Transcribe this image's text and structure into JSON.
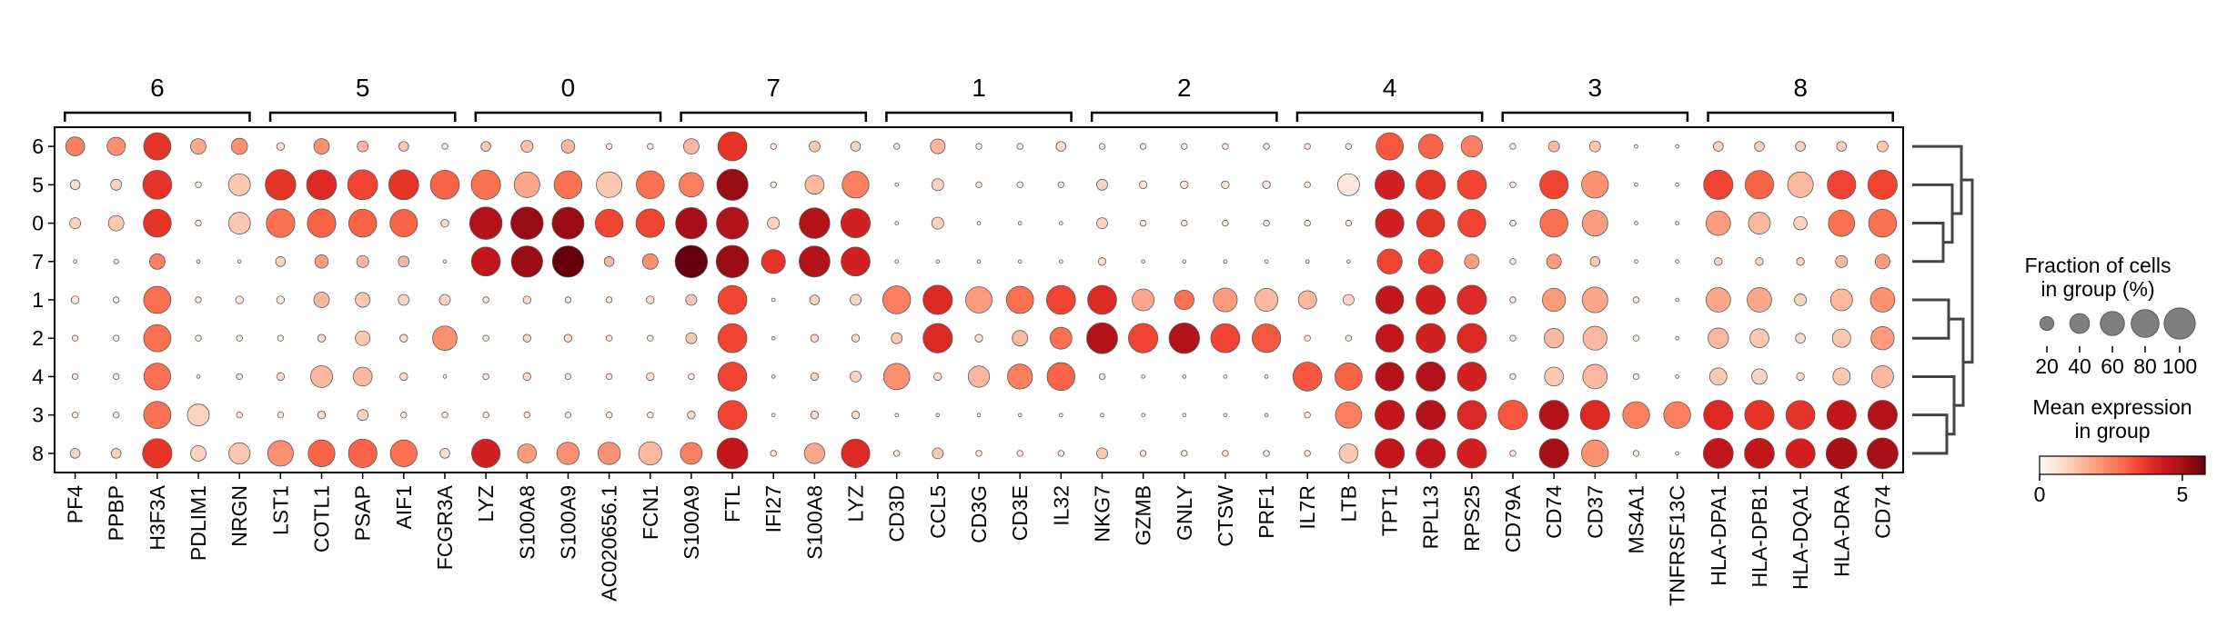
{
  "chart_data": {
    "type": "dotplot",
    "rows": [
      "6",
      "5",
      "0",
      "7",
      "1",
      "2",
      "4",
      "3",
      "8"
    ],
    "gene_groups": [
      {
        "label": "6",
        "genes": [
          "PF4",
          "PPBP",
          "H3F3A",
          "PDLIM1",
          "NRGN"
        ]
      },
      {
        "label": "5",
        "genes": [
          "LST1",
          "COTL1",
          "PSAP",
          "AIF1",
          "FCGR3A"
        ]
      },
      {
        "label": "0",
        "genes": [
          "LYZ",
          "S100A8",
          "S100A9",
          "AC020656.1",
          "FCN1"
        ]
      },
      {
        "label": "7",
        "genes": [
          "S100A9",
          "FTL",
          "IFI27",
          "S100A8",
          "LYZ"
        ]
      },
      {
        "label": "1",
        "genes": [
          "CD3D",
          "CCL5",
          "CD3G",
          "CD3E",
          "IL32"
        ]
      },
      {
        "label": "2",
        "genes": [
          "NKG7",
          "GZMB",
          "GNLY",
          "CTSW",
          "PRF1"
        ]
      },
      {
        "label": "4",
        "genes": [
          "IL7R",
          "LTB",
          "TPT1",
          "RPL13",
          "RPS25"
        ]
      },
      {
        "label": "3",
        "genes": [
          "CD79A",
          "CD74",
          "CD37",
          "MS4A1",
          "TNFRSF13C"
        ]
      },
      {
        "label": "8",
        "genes": [
          "HLA-DPA1",
          "HLA-DPB1",
          "HLA-DQA1",
          "HLA-DRA",
          "CD74"
        ]
      }
    ],
    "fraction": [
      [
        30,
        28,
        62,
        20,
        22,
        5,
        20,
        10,
        8,
        3,
        8,
        12,
        15,
        3,
        3,
        20,
        70,
        3,
        10,
        8,
        3,
        18,
        3,
        3,
        8,
        3,
        3,
        3,
        3,
        3,
        3,
        3,
        62,
        50,
        38,
        3,
        10,
        10,
        1,
        1,
        8,
        8,
        8,
        8,
        10
      ],
      [
        8,
        10,
        70,
        3,
        40,
        78,
        75,
        75,
        75,
        70,
        72,
        55,
        65,
        55,
        65,
        50,
        82,
        3,
        30,
        60,
        1,
        12,
        3,
        3,
        3,
        10,
        5,
        5,
        5,
        5,
        3,
        40,
        72,
        72,
        70,
        3,
        68,
        60,
        1,
        1,
        72,
        68,
        55,
        68,
        72
      ],
      [
        10,
        20,
        65,
        3,
        40,
        68,
        68,
        65,
        63,
        5,
        88,
        88,
        85,
        65,
        68,
        82,
        85,
        12,
        78,
        72,
        1,
        12,
        1,
        1,
        1,
        10,
        3,
        3,
        3,
        3,
        3,
        3,
        68,
        65,
        65,
        3,
        65,
        55,
        1,
        1,
        50,
        40,
        15,
        58,
        65
      ],
      [
        1,
        2,
        20,
        1,
        1,
        8,
        15,
        12,
        10,
        1,
        70,
        82,
        82,
        8,
        20,
        88,
        88,
        48,
        80,
        70,
        1,
        1,
        1,
        1,
        1,
        5,
        1,
        1,
        1,
        1,
        1,
        1,
        52,
        50,
        18,
        3,
        18,
        8,
        1,
        1,
        5,
        5,
        5,
        12,
        18
      ],
      [
        5,
        3,
        62,
        3,
        5,
        5,
        20,
        18,
        10,
        10,
        3,
        5,
        3,
        3,
        5,
        10,
        70,
        1,
        8,
        10,
        65,
        72,
        58,
        62,
        70,
        70,
        40,
        32,
        48,
        44,
        28,
        10,
        65,
        72,
        72,
        3,
        45,
        55,
        3,
        1,
        50,
        50,
        12,
        40,
        50
      ],
      [
        3,
        3,
        62,
        3,
        3,
        3,
        5,
        18,
        5,
        50,
        3,
        5,
        5,
        3,
        3,
        10,
        70,
        1,
        5,
        5,
        10,
        72,
        5,
        20,
        40,
        80,
        72,
        78,
        70,
        68,
        3,
        3,
        65,
        72,
        72,
        3,
        32,
        48,
        3,
        1,
        35,
        30,
        8,
        28,
        45
      ],
      [
        3,
        3,
        60,
        1,
        3,
        5,
        40,
        30,
        5,
        1,
        3,
        5,
        3,
        3,
        5,
        3,
        70,
        1,
        5,
        10,
        58,
        5,
        38,
        52,
        65,
        3,
        1,
        1,
        1,
        1,
        70,
        62,
        68,
        72,
        70,
        3,
        30,
        50,
        3,
        1,
        25,
        20,
        5,
        25,
        40
      ],
      [
        3,
        3,
        62,
        40,
        3,
        3,
        5,
        10,
        3,
        3,
        3,
        3,
        3,
        3,
        3,
        5,
        70,
        1,
        5,
        5,
        1,
        1,
        1,
        1,
        1,
        1,
        1,
        1,
        1,
        1,
        3,
        58,
        72,
        72,
        70,
        72,
        72,
        72,
        60,
        60,
        72,
        72,
        70,
        72,
        72
      ],
      [
        8,
        8,
        72,
        20,
        38,
        55,
        60,
        68,
        60,
        8,
        68,
        30,
        42,
        42,
        45,
        40,
        80,
        3,
        35,
        68,
        3,
        10,
        3,
        3,
        3,
        10,
        3,
        3,
        3,
        3,
        3,
        30,
        72,
        72,
        72,
        3,
        72,
        60,
        3,
        1,
        75,
        75,
        72,
        80,
        80
      ]
    ],
    "mean_expression": [
      [
        2.5,
        2.2,
        3.8,
        1.8,
        2.2,
        0.8,
        2.2,
        1.5,
        1.2,
        0.5,
        1.2,
        1.4,
        1.5,
        0.5,
        0.5,
        1.5,
        3.8,
        0.5,
        1.2,
        1.0,
        0.5,
        1.5,
        0.5,
        0.5,
        0.8,
        0.5,
        0.5,
        0.5,
        0.5,
        0.5,
        0.5,
        0.5,
        3.2,
        3.0,
        2.5,
        0.5,
        1.5,
        1.2,
        0.3,
        0.3,
        1.0,
        1.0,
        1.0,
        1.0,
        1.2
      ],
      [
        0.8,
        1.0,
        3.8,
        0.5,
        1.2,
        3.8,
        4.0,
        3.5,
        3.8,
        3.0,
        2.8,
        1.8,
        2.8,
        1.2,
        2.8,
        2.5,
        5.2,
        0.5,
        1.5,
        2.5,
        0.3,
        1.0,
        0.5,
        0.5,
        0.5,
        1.0,
        0.5,
        0.5,
        0.5,
        0.5,
        0.5,
        0.5,
        4.2,
        3.8,
        3.5,
        0.5,
        3.5,
        2.2,
        0.3,
        0.3,
        3.5,
        3.0,
        1.5,
        3.5,
        3.5
      ],
      [
        1.0,
        1.2,
        3.8,
        0.5,
        1.2,
        2.8,
        3.0,
        3.0,
        3.0,
        0.8,
        4.8,
        5.2,
        5.2,
        3.5,
        3.5,
        5.0,
        4.8,
        1.0,
        4.8,
        4.2,
        0.3,
        1.0,
        0.3,
        0.3,
        0.3,
        1.0,
        0.5,
        0.5,
        0.5,
        0.5,
        0.5,
        0.5,
        4.2,
        3.8,
        3.5,
        0.5,
        2.8,
        2.0,
        0.3,
        0.3,
        2.0,
        1.5,
        1.0,
        2.8,
        2.8
      ],
      [
        0.3,
        0.5,
        2.5,
        0.3,
        0.3,
        1.0,
        2.0,
        1.5,
        1.5,
        0.3,
        4.5,
        5.2,
        5.8,
        1.5,
        2.2,
        5.8,
        5.2,
        3.8,
        4.8,
        4.2,
        0.3,
        0.3,
        0.3,
        0.3,
        0.3,
        0.8,
        0.3,
        0.3,
        0.3,
        0.3,
        0.3,
        0.3,
        3.5,
        3.5,
        2.0,
        0.5,
        2.0,
        1.2,
        0.3,
        0.3,
        1.0,
        1.0,
        1.0,
        1.5,
        2.0
      ],
      [
        0.5,
        0.5,
        2.8,
        0.5,
        0.5,
        0.5,
        1.5,
        1.2,
        1.0,
        1.0,
        0.5,
        0.8,
        0.5,
        0.5,
        0.8,
        1.2,
        3.5,
        0.3,
        1.0,
        1.0,
        2.5,
        4.0,
        2.0,
        2.8,
        3.5,
        4.0,
        1.8,
        2.8,
        2.0,
        1.5,
        1.5,
        1.0,
        4.5,
        4.2,
        4.0,
        0.5,
        2.0,
        1.8,
        0.5,
        0.3,
        1.8,
        1.8,
        1.0,
        1.5,
        2.2
      ],
      [
        0.5,
        0.5,
        2.8,
        0.5,
        0.5,
        0.5,
        0.8,
        1.2,
        0.8,
        2.2,
        0.5,
        0.8,
        0.8,
        0.5,
        0.5,
        1.2,
        3.5,
        0.3,
        0.8,
        0.8,
        1.2,
        4.0,
        0.8,
        1.5,
        2.8,
        4.8,
        3.5,
        4.8,
        3.5,
        3.2,
        0.5,
        0.5,
        4.5,
        4.2,
        4.0,
        0.5,
        1.5,
        1.5,
        0.5,
        0.3,
        1.5,
        1.2,
        0.8,
        1.2,
        2.0
      ],
      [
        0.5,
        0.5,
        2.8,
        0.3,
        0.5,
        0.8,
        1.5,
        1.5,
        0.8,
        0.3,
        0.5,
        0.8,
        0.5,
        0.5,
        0.8,
        0.5,
        3.5,
        0.3,
        1.0,
        1.0,
        2.2,
        0.8,
        1.5,
        2.5,
        3.0,
        0.5,
        0.3,
        0.3,
        0.3,
        0.3,
        3.2,
        3.0,
        4.8,
        4.8,
        4.2,
        0.5,
        1.2,
        1.5,
        0.5,
        0.3,
        1.2,
        1.0,
        0.8,
        1.2,
        1.5
      ],
      [
        0.5,
        0.5,
        2.8,
        1.0,
        0.5,
        0.5,
        0.8,
        1.0,
        0.5,
        0.5,
        0.5,
        0.5,
        0.5,
        0.5,
        0.5,
        0.8,
        3.5,
        0.3,
        0.8,
        0.8,
        0.3,
        0.3,
        0.3,
        0.3,
        0.3,
        0.3,
        0.3,
        0.3,
        0.3,
        0.3,
        0.5,
        2.5,
        4.5,
        4.8,
        4.0,
        3.2,
        4.8,
        4.0,
        2.5,
        2.5,
        4.0,
        3.8,
        3.8,
        4.5,
        4.8
      ],
      [
        1.0,
        1.0,
        3.8,
        1.0,
        1.2,
        2.2,
        3.0,
        3.0,
        2.8,
        0.8,
        4.2,
        2.0,
        2.2,
        2.2,
        1.5,
        2.5,
        4.5,
        0.5,
        1.8,
        4.0,
        0.5,
        1.2,
        0.5,
        0.5,
        0.5,
        1.2,
        0.5,
        0.5,
        0.5,
        0.5,
        0.5,
        1.2,
        4.5,
        4.5,
        4.2,
        0.5,
        5.0,
        2.2,
        0.5,
        0.3,
        4.5,
        4.5,
        4.2,
        5.0,
        5.0
      ]
    ],
    "dendrogram_order": [
      "6",
      "5",
      "0",
      "7",
      "1",
      "2",
      "4",
      "3",
      "8"
    ],
    "size_legend": {
      "title": "Fraction of cells\nin group (%)",
      "ticks": [
        20,
        40,
        60,
        80,
        100
      ]
    },
    "color_legend": {
      "title": "Mean expression\nin group",
      "ticks": [
        0,
        5
      ],
      "range": [
        0,
        5.8
      ]
    },
    "colors": {
      "cmap": "Reds",
      "dot_edge": "#5a5a5a",
      "dendrogram": "#444444",
      "frame": "#000000"
    }
  }
}
